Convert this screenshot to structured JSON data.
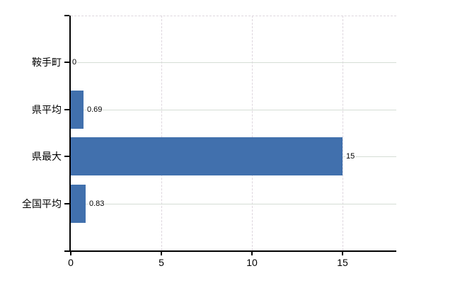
{
  "chart_data": {
    "type": "bar",
    "orientation": "horizontal",
    "title": "",
    "xlabel": "",
    "ylabel": "",
    "categories": [
      "鞍手町",
      "県平均",
      "県最大",
      "全国平均"
    ],
    "values": [
      0,
      0.69,
      15,
      0.83
    ],
    "value_labels": [
      "0",
      "0.69",
      "15",
      "0.83"
    ],
    "x_tick_labels": [
      "0",
      "5",
      "10",
      "15"
    ],
    "x_tick_values": [
      0,
      5,
      10,
      15
    ],
    "xlim": [
      0,
      17.97
    ],
    "grid": true,
    "legend_position": "none",
    "colors": {
      "bar": "#4170ad",
      "horizontal_grid": "#d5ded5",
      "vertical_grid": "#ded6de",
      "axis": "#000000",
      "text": "#000000",
      "background": "#ffffff"
    }
  }
}
